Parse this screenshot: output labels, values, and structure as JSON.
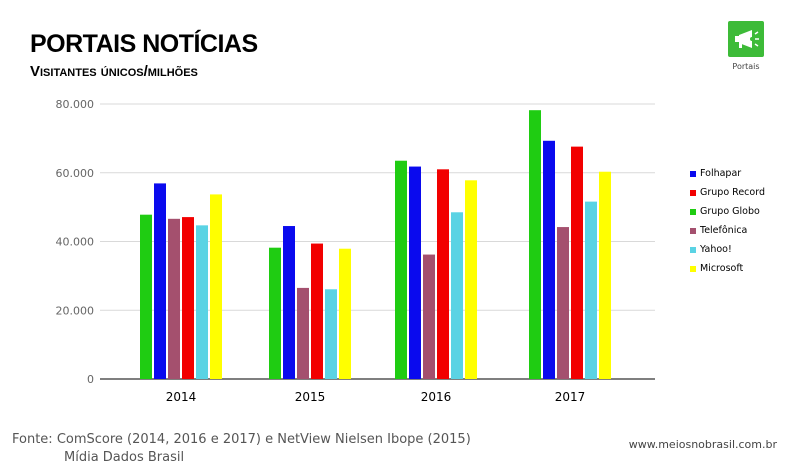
{
  "header": {
    "title": "PORTAIS NOTÍCIAS",
    "subtitle": "Visitantes únicos/milhões"
  },
  "badge": {
    "icon": "megaphone-icon",
    "label": "Portais",
    "color": "#3dbb38"
  },
  "chart_data": {
    "type": "bar",
    "categories": [
      "2014",
      "2015",
      "2016",
      "2017"
    ],
    "series": [
      {
        "name": "Grupo Globo",
        "color": "#1fcc12",
        "values": [
          47800,
          38200,
          63500,
          78200
        ]
      },
      {
        "name": "Folhapar",
        "color": "#0a0aee",
        "values": [
          56900,
          44500,
          61800,
          69300
        ]
      },
      {
        "name": "Telefônica",
        "color": "#a4506e",
        "values": [
          46600,
          26500,
          36200,
          44200
        ]
      },
      {
        "name": "Grupo Record",
        "color": "#f20000",
        "values": [
          47100,
          39400,
          61000,
          67600
        ]
      },
      {
        "name": "Yahoo!",
        "color": "#5ad3e4",
        "values": [
          44700,
          26100,
          48500,
          51600
        ]
      },
      {
        "name": "Microsoft",
        "color": "#ffff00",
        "values": [
          53700,
          37900,
          57800,
          60300
        ]
      }
    ],
    "yticks": [
      "0",
      "20.000",
      "40.000",
      "60.000",
      "80.000"
    ],
    "ytick_values": [
      0,
      20000,
      40000,
      60000,
      80000
    ],
    "ylim": [
      0,
      80000
    ],
    "grid": true,
    "legend": {
      "position": "right",
      "order": [
        "Folhapar",
        "Grupo Record",
        "Grupo Globo",
        "Telefônica",
        "Yahoo!",
        "Microsoft"
      ]
    }
  },
  "footer": {
    "source_line1": "Fonte: ComScore (2014, 2016 e 2017) e NetView Nielsen Ibope (2015)",
    "source_line2": "Mídia Dados Brasil",
    "website": "www.meiosnobrasil.com.br"
  }
}
